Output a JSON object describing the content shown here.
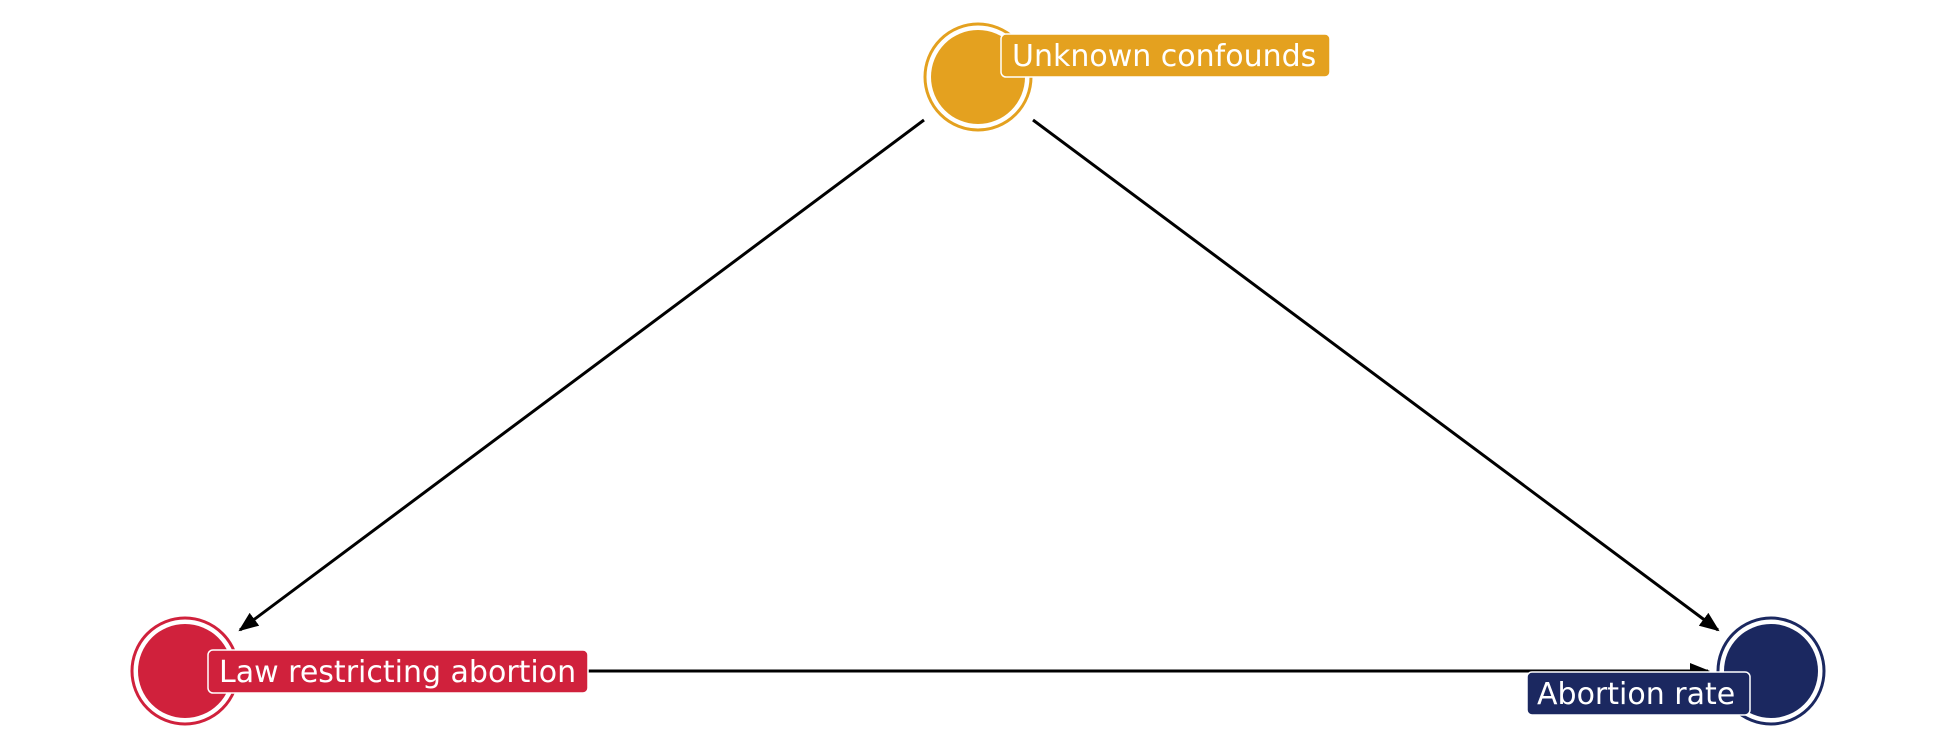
{
  "diagram": {
    "nodes": [
      {
        "id": "confounds",
        "label": "Unknown confounds",
        "color": "#E4A11F"
      },
      {
        "id": "law",
        "label": "Law restricting abortion",
        "color": "#D0213C"
      },
      {
        "id": "rate",
        "label": "Abortion rate",
        "color": "#1B2860"
      }
    ],
    "edges": [
      {
        "from": "confounds",
        "to": "law"
      },
      {
        "from": "confounds",
        "to": "rate"
      },
      {
        "from": "law",
        "to": "rate"
      }
    ],
    "edge_color": "#000000"
  }
}
